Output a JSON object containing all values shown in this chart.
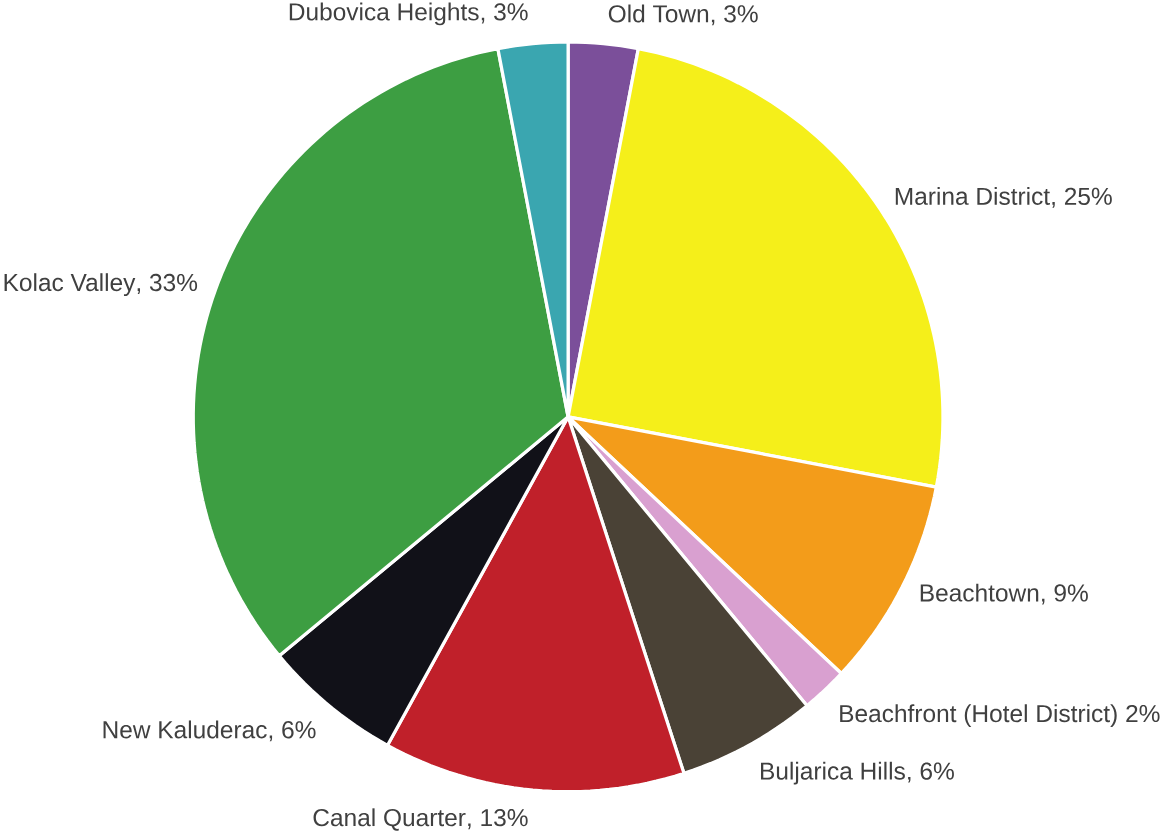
{
  "chart_data": {
    "type": "pie",
    "categories": [
      "Old Town",
      "Marina District",
      "Beachtown",
      "Beachfront (Hotel District)",
      "Buljarica Hills",
      "Canal Quarter",
      "New Kaluderac",
      "Kolac Valley",
      "Dubovica Heights"
    ],
    "values": [
      3,
      25,
      9,
      2,
      6,
      13,
      6,
      33,
      3
    ],
    "value_labels": [
      ", 3%",
      ", 25%",
      ", 9%",
      " 2%",
      ", 6%",
      ", 13%",
      ", 6%",
      ", 33%",
      ", 3%"
    ],
    "colors": [
      "#7b4f9a",
      "#f5ef1a",
      "#f39c1a",
      "#d9a0d0",
      "#4a4236",
      "#c0202a",
      "#111118",
      "#3d9e42",
      "#3aa6b0"
    ]
  }
}
